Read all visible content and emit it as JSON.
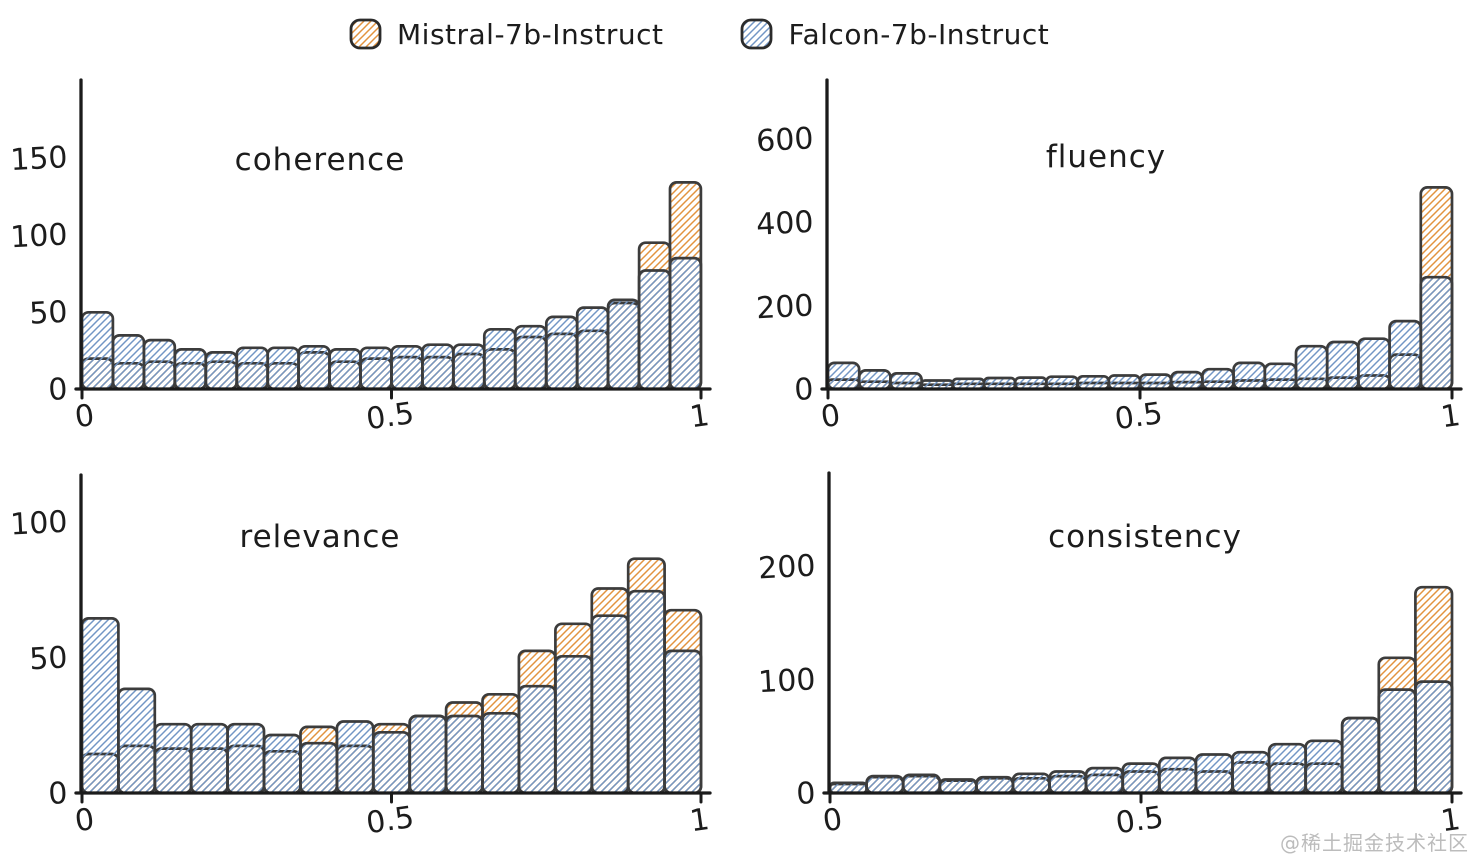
{
  "page": {
    "watermark": "@稀土掘金技术社区"
  },
  "legend": {
    "position": "figure-top-center",
    "items": [
      {
        "label": "Mistral-7b-Instruct",
        "series": "mistral",
        "swatch": "orange-hatch"
      },
      {
        "label": "Falcon-7b-Instruct",
        "series": "falcon",
        "swatch": "blue-hatch"
      }
    ]
  },
  "colors": {
    "mistral": "#e2933f",
    "falcon": "#7296c5",
    "outline": "#3c3c3c",
    "axis": "#1b1b1b",
    "text": "#1c1c1c",
    "watermark": "#bcbcbc",
    "background": "#ffffff"
  },
  "chart_data": [
    {
      "type": "bar",
      "subtype": "overlaid-histogram",
      "title": "coherence",
      "xlabel": "",
      "ylabel": "",
      "grid": false,
      "xlim": [
        0,
        1
      ],
      "ylim": [
        0,
        196
      ],
      "bins": 20,
      "bin_width": 0.05,
      "x_tick_values": [
        0,
        0.5,
        1
      ],
      "x_tick_labels": [
        "0",
        "0.5",
        "1"
      ],
      "y_tick_values": [
        0,
        50,
        100,
        150
      ],
      "series": [
        {
          "name": "Mistral-7b-Instruct",
          "color_key": "mistral",
          "values": [
            19,
            16,
            17,
            16,
            17,
            16,
            16,
            23,
            17,
            19,
            20,
            20,
            22,
            25,
            33,
            35,
            37,
            55,
            94,
            133
          ]
        },
        {
          "name": "Falcon-7b-Instruct",
          "color_key": "falcon",
          "values": [
            49,
            34,
            31,
            25,
            23,
            26,
            26,
            27,
            25,
            26,
            27,
            28,
            28,
            38,
            40,
            46,
            52,
            57,
            76,
            84
          ]
        }
      ]
    },
    {
      "type": "bar",
      "subtype": "overlaid-histogram",
      "title": "fluency",
      "xlabel": "",
      "ylabel": "",
      "grid": false,
      "xlim": [
        0,
        1
      ],
      "ylim": [
        0,
        725
      ],
      "bins": 20,
      "bin_width": 0.05,
      "x_tick_values": [
        0,
        0.5,
        1
      ],
      "x_tick_labels": [
        "0",
        "0.5",
        "1"
      ],
      "y_tick_values": [
        0,
        200,
        400,
        600
      ],
      "series": [
        {
          "name": "Mistral-7b-Instruct",
          "color_key": "mistral",
          "values": [
            20,
            15,
            12,
            8,
            10,
            10,
            10,
            10,
            12,
            12,
            12,
            14,
            15,
            18,
            20,
            22,
            25,
            30,
            80,
            480
          ]
        },
        {
          "name": "Falcon-7b-Instruct",
          "color_key": "falcon",
          "values": [
            60,
            42,
            35,
            18,
            22,
            24,
            25,
            27,
            28,
            30,
            32,
            38,
            45,
            60,
            58,
            100,
            110,
            118,
            160,
            265
          ]
        }
      ]
    },
    {
      "type": "bar",
      "subtype": "overlaid-histogram",
      "title": "relevance",
      "xlabel": "",
      "ylabel": "",
      "grid": false,
      "xlim": [
        0,
        1
      ],
      "ylim": [
        0,
        115
      ],
      "bins": 17,
      "bin_width": 0.0588,
      "x_tick_values": [
        0,
        0.5,
        1
      ],
      "x_tick_labels": [
        "0",
        "0.5",
        "1"
      ],
      "y_tick_values": [
        0,
        50,
        100
      ],
      "series": [
        {
          "name": "Mistral-7b-Instruct",
          "color_key": "mistral",
          "values": [
            14,
            17,
            16,
            16,
            17,
            15,
            24,
            17,
            25,
            28,
            33,
            36,
            52,
            62,
            75,
            86,
            67
          ]
        },
        {
          "name": "Falcon-7b-Instruct",
          "color_key": "falcon",
          "values": [
            64,
            38,
            25,
            25,
            25,
            21,
            18,
            26,
            22,
            28,
            28,
            29,
            39,
            50,
            65,
            74,
            52
          ]
        }
      ]
    },
    {
      "type": "bar",
      "subtype": "overlaid-histogram",
      "title": "consistency",
      "xlabel": "",
      "ylabel": "",
      "grid": false,
      "xlim": [
        0,
        1
      ],
      "ylim": [
        0,
        276
      ],
      "bins": 17,
      "bin_width": 0.0588,
      "x_tick_values": [
        0,
        0.5,
        1
      ],
      "x_tick_labels": [
        "0",
        "0.5",
        "1"
      ],
      "y_tick_values": [
        0,
        100,
        200
      ],
      "series": [
        {
          "name": "Mistral-7b-Instruct",
          "color_key": "mistral",
          "values": [
            7,
            13,
            14,
            10,
            12,
            12,
            14,
            15,
            18,
            20,
            18,
            26,
            25,
            25,
            65,
            118,
            180
          ]
        },
        {
          "name": "Falcon-7b-Instruct",
          "color_key": "falcon",
          "values": [
            8,
            14,
            15,
            11,
            13,
            16,
            18,
            21,
            25,
            30,
            33,
            35,
            42,
            45,
            65,
            90,
            97
          ]
        }
      ]
    }
  ]
}
